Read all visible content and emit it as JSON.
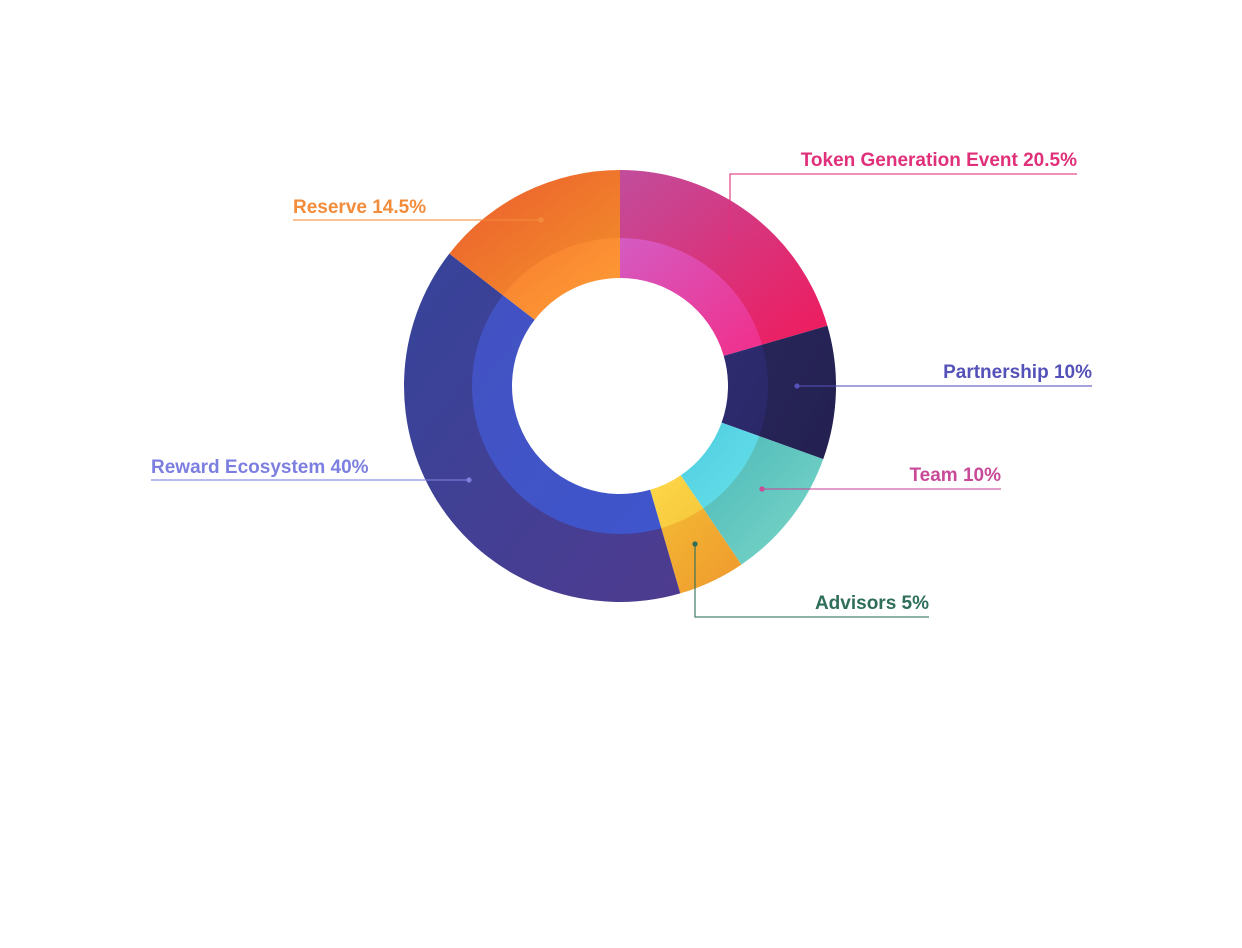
{
  "chart_data": {
    "type": "pie",
    "variant": "donut",
    "title": "",
    "legend": "none",
    "slices": [
      {
        "name": "Token Generation Event",
        "value": 20.5,
        "label": "Token Generation Event  20.5%",
        "color": "#e0307a",
        "outer": [
          "#c14d9c",
          "#f01a5c"
        ],
        "inner": [
          "#d45bc2",
          "#f22e8a"
        ]
      },
      {
        "name": "Partnership",
        "value": 10,
        "label": "Partnership 10%",
        "color": "#5452b8",
        "outer": [
          "#28255a",
          "#232050"
        ],
        "inner": [
          "#2e2b70",
          "#2a2868"
        ]
      },
      {
        "name": "Team",
        "value": 10,
        "label": "Team  10%",
        "color": "#c84a98",
        "outer": [
          "#4cb8b8",
          "#7dd8c9"
        ],
        "inner": [
          "#4fcde0",
          "#66e0ea"
        ]
      },
      {
        "name": "Advisors",
        "value": 5,
        "label": "Advisors 5%",
        "color": "#2e6e5a",
        "outer": [
          "#f2b833",
          "#f0982d"
        ],
        "inner": [
          "#ffd84a",
          "#f5c73a"
        ]
      },
      {
        "name": "Reward Ecosystem",
        "value": 40,
        "label": "Reward Ecosystem 40%",
        "color": "#7c7fe0",
        "outer": [
          "#35449a",
          "#4e3b8f"
        ],
        "inner": [
          "#4352c2",
          "#3f55cc"
        ]
      },
      {
        "name": "Reserve",
        "value": 14.5,
        "label": "Reserve  14.5%",
        "color": "#f28c3a",
        "outer": [
          "#ec5a2e",
          "#f2922a"
        ],
        "inner": [
          "#f77c30",
          "#ffa035"
        ]
      }
    ]
  }
}
